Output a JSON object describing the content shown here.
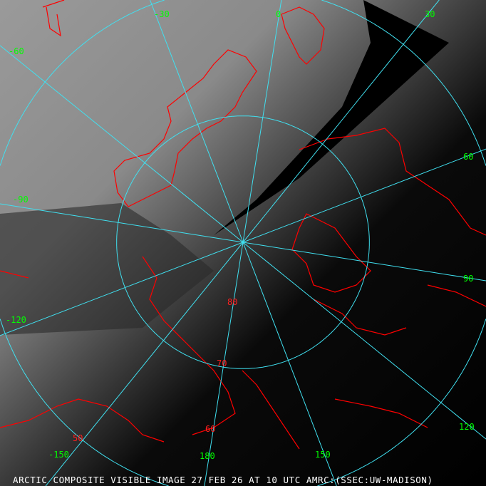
{
  "caption": "ARCTIC COMPOSITE VISIBLE IMAGE 27 FEB 26 AT 10 UTC AMRC:(SSEC:UW-MADISON)",
  "colors": {
    "graticule": "#40e0f0",
    "coastline": "#ff0000",
    "longitude_labels": "#00ff00",
    "latitude_labels": "#ff2020",
    "caption": "#ffffff"
  },
  "map": {
    "projection": "north polar stereographic",
    "imagery": "visible satellite composite (grayscale)",
    "meridian_labels": [
      "-30",
      "0",
      "30",
      "-60",
      "60",
      "-90",
      "90",
      "-120",
      "120",
      "-150",
      "180",
      "150"
    ],
    "meridians_deg": [
      -150,
      -120,
      -90,
      -60,
      -30,
      0,
      30,
      60,
      90,
      120,
      150,
      180
    ],
    "parallel_labels": [
      "80",
      "70",
      "60",
      "50"
    ],
    "parallels_deg": [
      80,
      70,
      60,
      50
    ]
  }
}
